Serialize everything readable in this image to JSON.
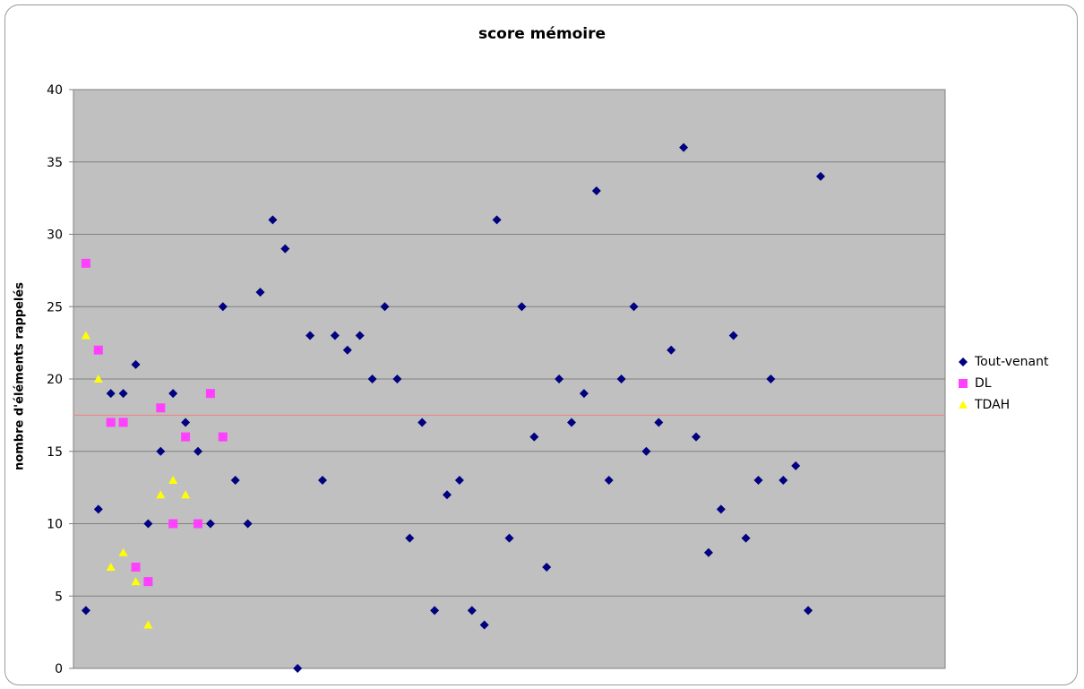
{
  "chart_data": {
    "type": "scatter",
    "title": "score mémoire",
    "ylabel": "nombre d'éléments rappelés",
    "xlabel": "",
    "ylim": [
      0,
      40
    ],
    "xlim": [
      0,
      70
    ],
    "yticks": [
      "0",
      "5",
      "10",
      "15",
      "20",
      "25",
      "30",
      "35",
      "40"
    ],
    "grid": true,
    "legend_position": "right",
    "reference_line": {
      "y": 17.5,
      "color": "#f08080"
    },
    "series": [
      {
        "name": "Tout-venant",
        "marker": "diamond",
        "color": "#000080",
        "x": [
          1,
          2,
          3,
          4,
          5,
          6,
          7,
          8,
          9,
          10,
          11,
          12,
          13,
          14,
          15,
          16,
          17,
          18,
          19,
          20,
          21,
          22,
          23,
          24,
          25,
          26,
          27,
          28,
          29,
          30,
          31,
          32,
          33,
          34,
          35,
          36,
          37,
          38,
          39,
          40,
          41,
          42,
          43,
          44,
          45,
          46,
          47,
          48,
          49,
          50,
          51,
          52,
          53,
          54,
          55,
          56,
          57,
          58,
          59,
          60
        ],
        "y": [
          4,
          11,
          19,
          19,
          21,
          10,
          15,
          19,
          17,
          15,
          10,
          25,
          13,
          10,
          26,
          31,
          29,
          0,
          23,
          13,
          23,
          22,
          23,
          20,
          25,
          20,
          9,
          17,
          4,
          12,
          13,
          4,
          3,
          31,
          9,
          25,
          16,
          7,
          20,
          17,
          19,
          33,
          13,
          20,
          25,
          15,
          17,
          22,
          36,
          16,
          8,
          11,
          23,
          9,
          13,
          20,
          13,
          14,
          4,
          34
        ]
      },
      {
        "name": "DL",
        "marker": "square",
        "color": "#ff40ff",
        "x": [
          1,
          2,
          3,
          4,
          5,
          6,
          7,
          8,
          9,
          10,
          11,
          12
        ],
        "y": [
          28,
          22,
          17,
          17,
          7,
          6,
          18,
          10,
          16,
          10,
          19,
          16
        ]
      },
      {
        "name": "TDAH",
        "marker": "triangle",
        "color": "#ffff00",
        "x": [
          1,
          2,
          3,
          4,
          5,
          6,
          7,
          8,
          9
        ],
        "y": [
          23,
          20,
          7,
          8,
          6,
          3,
          12,
          13,
          12
        ]
      }
    ]
  }
}
